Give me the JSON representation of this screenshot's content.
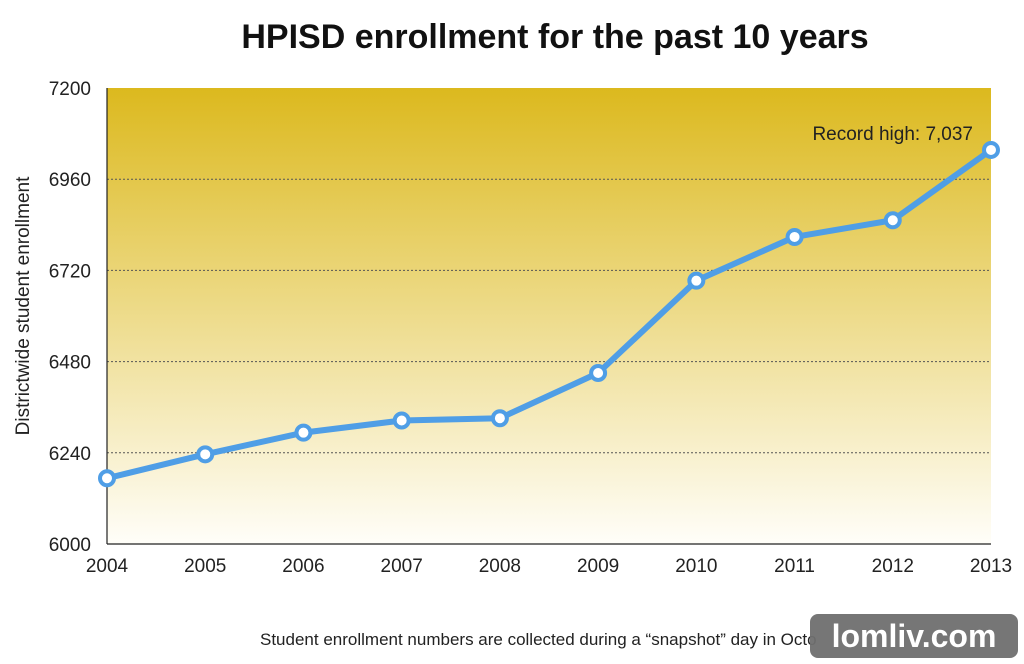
{
  "colors": {
    "line": "#4f9ee6",
    "plot_top": "#dcb91e",
    "plot_bottom": "#fffef9",
    "grid": "#555555",
    "marker_fill": "#ffffff"
  },
  "watermark": "lomliv.com",
  "footnote": "Student enrollment numbers are collected during a “snapshot” day in Octo",
  "chart_data": {
    "type": "line",
    "title": "HPISD enrollment for the past 10 years",
    "xlabel": "",
    "ylabel": "Districtwide student enrollment",
    "categories": [
      "2004",
      "2005",
      "2006",
      "2007",
      "2008",
      "2009",
      "2010",
      "2011",
      "2012",
      "2013"
    ],
    "series": [
      {
        "values": [
          6173,
          6236,
          6293,
          6325,
          6331,
          6450,
          6693,
          6808,
          6852,
          7037
        ]
      }
    ],
    "ylim": [
      6000,
      7200
    ],
    "yticks": [
      6000,
      6240,
      6480,
      6720,
      6960,
      7200
    ],
    "grid": true,
    "background": "gradient",
    "annotations": [
      {
        "text": "Record high: 7,037",
        "x": "2013",
        "y": 7037
      }
    ]
  }
}
